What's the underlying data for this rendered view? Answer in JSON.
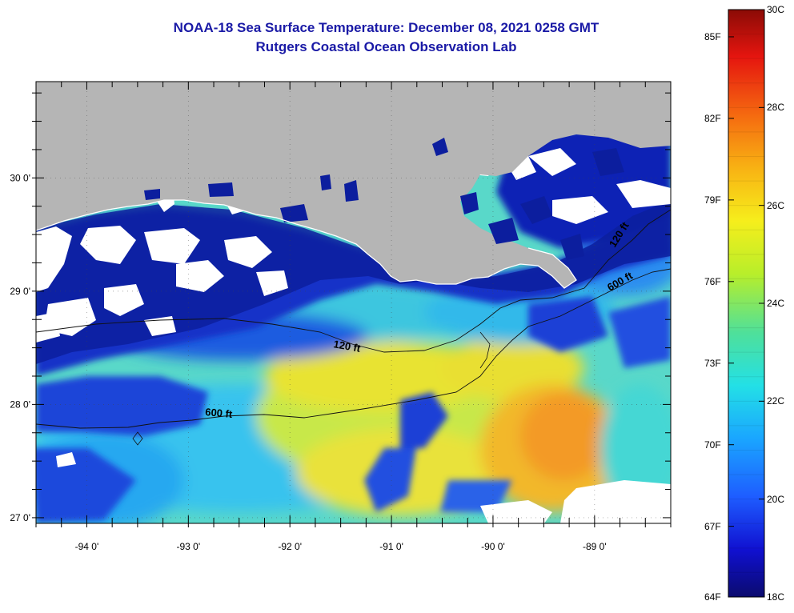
{
  "header": {
    "title": "NOAA-18 Sea Surface Temperature:  December 08, 2021 0258 GMT",
    "subtitle": "Rutgers Coastal Ocean Observation Lab"
  },
  "map": {
    "lon_range": [
      -94.5,
      -88.25
    ],
    "lat_range": [
      26.95,
      30.85
    ],
    "lat_ticks": [
      {
        "value": 30,
        "label": "30 0'"
      },
      {
        "value": 29,
        "label": "29 0'"
      },
      {
        "value": 28,
        "label": "28 0'"
      },
      {
        "value": 27,
        "label": "27 0'"
      }
    ],
    "lon_ticks": [
      {
        "value": -94,
        "label": "-94 0'"
      },
      {
        "value": -93,
        "label": "-93 0'"
      },
      {
        "value": -92,
        "label": "-92 0'"
      },
      {
        "value": -91,
        "label": "-91 0'"
      },
      {
        "value": -90,
        "label": "-90 0'"
      },
      {
        "value": -89,
        "label": "-89 0'"
      }
    ],
    "contour_labels": [
      "120 ft",
      "600 ft",
      "120 ft",
      "600 ft"
    ],
    "colors": {
      "land": "#b5b5b5",
      "cloud": "#ffffff",
      "cold": "#0a1a8c"
    }
  },
  "colorbar": {
    "fahrenheit": [
      {
        "value": 85,
        "label": "85F"
      },
      {
        "value": 82,
        "label": "82F"
      },
      {
        "value": 79,
        "label": "79F"
      },
      {
        "value": 76,
        "label": "76F"
      },
      {
        "value": 73,
        "label": "73F"
      },
      {
        "value": 70,
        "label": "70F"
      },
      {
        "value": 67,
        "label": "67F"
      },
      {
        "value": 64,
        "label": "64F"
      }
    ],
    "celsius": [
      {
        "value": 30,
        "label": "30C"
      },
      {
        "value": 28,
        "label": "28C"
      },
      {
        "value": 26,
        "label": "26C"
      },
      {
        "value": 24,
        "label": "24C"
      },
      {
        "value": 22,
        "label": "22C"
      },
      {
        "value": 20,
        "label": "20C"
      },
      {
        "value": 18,
        "label": "18C"
      }
    ],
    "range_c": [
      18,
      30
    ],
    "colors": [
      "#0b0b6e",
      "#1010d0",
      "#1e5cff",
      "#1aa6ff",
      "#23e0e6",
      "#4fe09a",
      "#b8ee2a",
      "#f6ee1c",
      "#f8b213",
      "#f56a10",
      "#e5150f",
      "#8b0b06"
    ]
  }
}
